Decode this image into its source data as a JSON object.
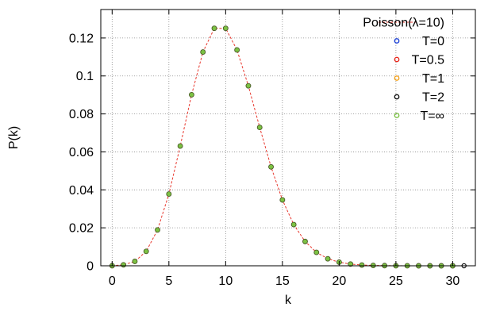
{
  "chart_data": {
    "type": "scatter",
    "xlabel": "k",
    "ylabel": "P(k)",
    "xlim": [
      -1,
      32
    ],
    "ylim": [
      0,
      0.135
    ],
    "x_ticks": [
      0,
      5,
      10,
      15,
      20,
      25,
      30
    ],
    "y_ticks": [
      0,
      0.02,
      0.04,
      0.06,
      0.08,
      0.1,
      0.12
    ],
    "x_tick_labels": [
      "0",
      "5",
      "10",
      "15",
      "20",
      "25",
      "30"
    ],
    "y_tick_labels": [
      "0",
      "0.02",
      "0.04",
      "0.06",
      "0.08",
      "0.1",
      "0.12"
    ],
    "grid": true,
    "grid_style": "dotted",
    "legend_position": "top-right",
    "legend_entries": [
      {
        "label": "Poisson(λ=10)",
        "marker": "dashed-line",
        "color": "#e8382e"
      },
      {
        "label": "T=0",
        "marker": "circle",
        "color": "#1a3fd6"
      },
      {
        "label": "T=0.5",
        "marker": "circle",
        "color": "#e8261c"
      },
      {
        "label": "T=1",
        "marker": "circle",
        "color": "#f5a21a"
      },
      {
        "label": "T=2",
        "marker": "circle",
        "color": "#111111"
      },
      {
        "label": "T=∞",
        "marker": "circle",
        "color": "#7cc243"
      }
    ],
    "series": [
      {
        "name": "Poisson(λ=10)",
        "style": "dashed-line",
        "color": "#e8382e",
        "x": [
          0,
          1,
          2,
          3,
          4,
          5,
          6,
          7,
          8,
          9,
          10,
          11,
          12,
          13,
          14,
          15,
          16,
          17,
          18,
          19,
          20,
          21,
          22,
          23,
          24,
          25,
          26,
          27,
          28,
          29,
          30,
          31
        ],
        "y": [
          5e-05,
          0.0005,
          0.0023,
          0.0076,
          0.0189,
          0.0378,
          0.0631,
          0.0901,
          0.1126,
          0.1251,
          0.1251,
          0.1137,
          0.0948,
          0.0729,
          0.0521,
          0.0347,
          0.0217,
          0.0128,
          0.0071,
          0.0037,
          0.0019,
          0.0009,
          0.0004,
          0.0002,
          0.0001,
          4e-05,
          1e-05,
          0.0,
          0.0,
          0.0,
          0.0,
          0.0
        ]
      },
      {
        "name": "T=∞",
        "style": "markers",
        "color": "#7cc243",
        "x": [
          0,
          1,
          2,
          3,
          4,
          5,
          6,
          7,
          8,
          9,
          10,
          11,
          12,
          13,
          14,
          15,
          16,
          17,
          18,
          19,
          20,
          21,
          22,
          23,
          24,
          25,
          26,
          27,
          28,
          29,
          30
        ],
        "y": [
          5e-05,
          0.0005,
          0.0023,
          0.0076,
          0.0189,
          0.0378,
          0.0631,
          0.0901,
          0.1126,
          0.1251,
          0.1251,
          0.1137,
          0.0948,
          0.0729,
          0.0521,
          0.0347,
          0.0217,
          0.0128,
          0.0071,
          0.0037,
          0.0019,
          0.0009,
          0.0004,
          0.0002,
          0.0001,
          4e-05,
          1e-05,
          0.0,
          0.0,
          0.0,
          0.0
        ]
      },
      {
        "name": "T=2",
        "style": "markers",
        "color": "#111111",
        "x": [
          31
        ],
        "y": [
          0.0
        ]
      }
    ]
  }
}
